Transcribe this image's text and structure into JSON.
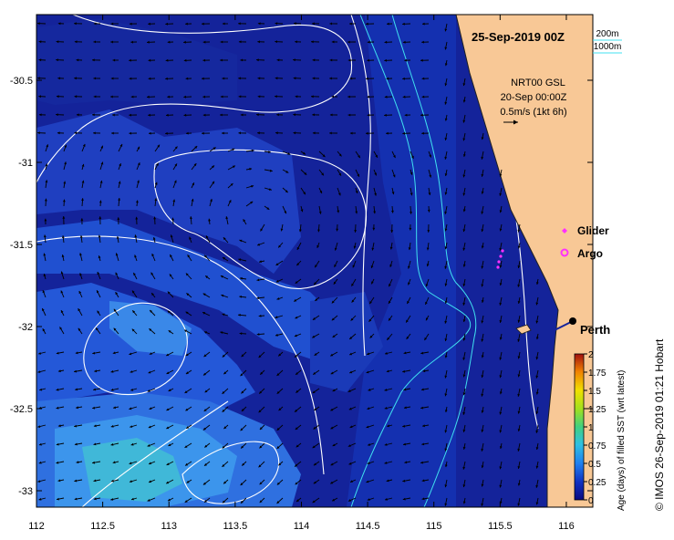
{
  "map": {
    "title": "25-Sep-2019 00Z",
    "lon_ticks": [
      "112",
      "112.5",
      "113",
      "113.5",
      "114",
      "114.5",
      "115",
      "115.5",
      "116"
    ],
    "lat_ticks": [
      "-30.5",
      "-31",
      "-31.5",
      "-32",
      "-32.5",
      "-33"
    ],
    "lon_range": [
      112,
      116.2
    ],
    "lat_range": [
      -33.1,
      -30.1
    ],
    "colors": {
      "ocean_deep": "#0d1f8c",
      "ocean_mid": "#1f4fd0",
      "ocean_light": "#3f8ff0",
      "ocean_warm": "#5fc0e8",
      "land": "#f8c896",
      "isobath": "#40e0f0",
      "contour": "#ffffff",
      "glider": "#ff30ff",
      "argo": "#ff30ff"
    }
  },
  "isobath_legend": {
    "depth_200": "200m",
    "depth_1000": "1000m"
  },
  "current_info": {
    "source": "NRT00 GSL",
    "date": "20-Sep 00:00Z",
    "scale": "0.5m/s (1kt 6h)"
  },
  "platforms": {
    "glider_label": "Glider",
    "argo_label": "Argo"
  },
  "places": {
    "perth": "Perth"
  },
  "colorbar": {
    "label": "Age (days) of filled SST (wrt latest)",
    "ticks": [
      "0",
      "0.25",
      "0.5",
      "0.75",
      "1",
      "1.25",
      "1.5",
      "1.75",
      "2"
    ]
  },
  "credit": "© IMOS 26-Sep-2019 01:21 Hobart"
}
